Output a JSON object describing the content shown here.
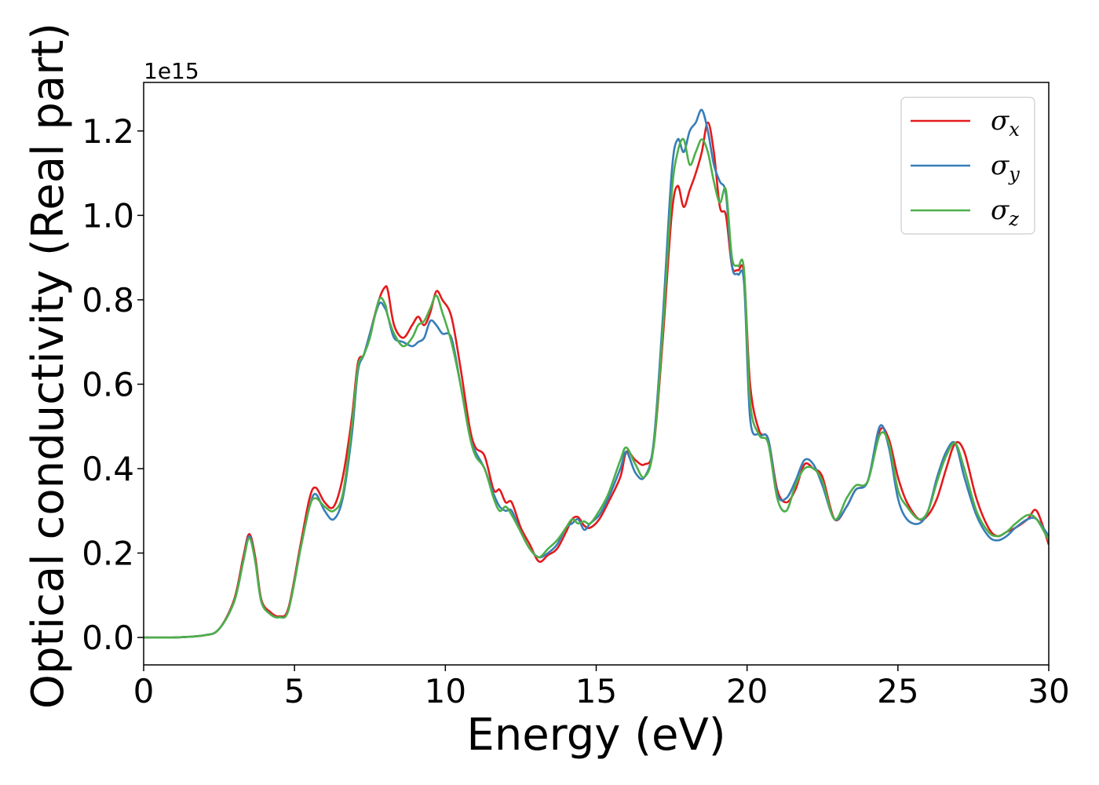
{
  "chart_data": {
    "type": "line",
    "title": "",
    "xlabel": "Energy (eV)",
    "ylabel": "Optical conductivity (Real part)",
    "y_offset_label": "1e15",
    "xlim": [
      0,
      30
    ],
    "ylim": [
      -0.065,
      1.315
    ],
    "xticks": [
      0,
      5,
      10,
      15,
      20,
      25,
      30
    ],
    "xtick_labels": [
      "0",
      "5",
      "10",
      "15",
      "20",
      "25",
      "30"
    ],
    "yticks": [
      0.0,
      0.2,
      0.4,
      0.6,
      0.8,
      1.0,
      1.2
    ],
    "ytick_labels": [
      "0.0",
      "0.2",
      "0.4",
      "0.6",
      "0.8",
      "1.0",
      "1.2"
    ],
    "grid": false,
    "legend": {
      "placement": "top-right"
    },
    "series": [
      {
        "name": "σx",
        "name_main": "σ",
        "name_sub": "x",
        "color": "#e41a1c",
        "x": [
          0,
          1,
          2,
          2.5,
          3.0,
          3.3,
          3.5,
          3.7,
          3.9,
          4.2,
          4.5,
          4.8,
          5.2,
          5.5,
          5.7,
          6.0,
          6.3,
          6.6,
          6.9,
          7.1,
          7.3,
          7.5,
          7.8,
          8.0,
          8.1,
          8.3,
          8.6,
          8.9,
          9.1,
          9.3,
          9.5,
          9.7,
          9.9,
          10.2,
          10.5,
          10.8,
          11.0,
          11.3,
          11.6,
          11.8,
          12.0,
          12.2,
          12.5,
          12.8,
          13.1,
          13.4,
          13.7,
          14.0,
          14.2,
          14.4,
          14.6,
          14.8,
          15.1,
          15.4,
          15.8,
          16.0,
          16.3,
          16.6,
          16.9,
          17.2,
          17.5,
          17.7,
          17.9,
          18.1,
          18.3,
          18.5,
          18.7,
          18.9,
          19.1,
          19.3,
          19.5,
          19.7,
          19.9,
          20.1,
          20.4,
          20.7,
          21.0,
          21.3,
          21.6,
          21.9,
          22.2,
          22.5,
          22.9,
          23.3,
          23.6,
          24.0,
          24.4,
          24.7,
          25.0,
          25.3,
          25.7,
          26.0,
          26.3,
          26.6,
          26.9,
          27.2,
          27.6,
          28.0,
          28.3,
          28.6,
          28.9,
          29.3,
          29.6,
          30.0
        ],
        "y": [
          0.0,
          0.0,
          0.005,
          0.02,
          0.09,
          0.19,
          0.245,
          0.19,
          0.09,
          0.06,
          0.05,
          0.07,
          0.22,
          0.33,
          0.355,
          0.32,
          0.31,
          0.38,
          0.52,
          0.65,
          0.67,
          0.72,
          0.8,
          0.83,
          0.82,
          0.74,
          0.71,
          0.74,
          0.76,
          0.74,
          0.77,
          0.82,
          0.8,
          0.76,
          0.64,
          0.5,
          0.45,
          0.43,
          0.35,
          0.35,
          0.32,
          0.32,
          0.26,
          0.22,
          0.18,
          0.195,
          0.21,
          0.25,
          0.28,
          0.285,
          0.265,
          0.26,
          0.28,
          0.32,
          0.38,
          0.44,
          0.42,
          0.41,
          0.45,
          0.7,
          1.0,
          1.07,
          1.02,
          1.06,
          1.1,
          1.15,
          1.22,
          1.15,
          1.02,
          1.0,
          0.88,
          0.87,
          0.86,
          0.6,
          0.49,
          0.47,
          0.35,
          0.32,
          0.35,
          0.41,
          0.4,
          0.38,
          0.28,
          0.31,
          0.35,
          0.37,
          0.49,
          0.47,
          0.38,
          0.32,
          0.28,
          0.29,
          0.33,
          0.4,
          0.46,
          0.44,
          0.33,
          0.26,
          0.24,
          0.25,
          0.26,
          0.28,
          0.3,
          0.22
        ]
      },
      {
        "name": "σy",
        "name_main": "σ",
        "name_sub": "y",
        "color": "#377eb8",
        "x": [
          0,
          1,
          2,
          2.5,
          3.0,
          3.3,
          3.5,
          3.7,
          3.9,
          4.2,
          4.5,
          4.8,
          5.2,
          5.5,
          5.7,
          6.0,
          6.3,
          6.6,
          6.9,
          7.1,
          7.3,
          7.5,
          7.8,
          8.0,
          8.1,
          8.3,
          8.6,
          8.9,
          9.1,
          9.3,
          9.5,
          9.7,
          9.9,
          10.2,
          10.5,
          10.8,
          11.0,
          11.3,
          11.6,
          11.8,
          12.0,
          12.2,
          12.5,
          12.8,
          13.1,
          13.4,
          13.7,
          14.0,
          14.2,
          14.4,
          14.6,
          14.8,
          15.1,
          15.4,
          15.8,
          16.0,
          16.3,
          16.6,
          16.9,
          17.2,
          17.5,
          17.7,
          17.9,
          18.1,
          18.3,
          18.5,
          18.7,
          18.9,
          19.1,
          19.3,
          19.5,
          19.7,
          19.9,
          20.1,
          20.4,
          20.7,
          21.0,
          21.3,
          21.6,
          21.9,
          22.2,
          22.5,
          22.9,
          23.3,
          23.6,
          24.0,
          24.4,
          24.7,
          25.0,
          25.3,
          25.7,
          26.0,
          26.3,
          26.6,
          26.9,
          27.2,
          27.6,
          28.0,
          28.3,
          28.6,
          28.9,
          29.3,
          29.6,
          30.0
        ],
        "y": [
          0.0,
          0.0,
          0.005,
          0.02,
          0.085,
          0.18,
          0.24,
          0.18,
          0.085,
          0.055,
          0.048,
          0.065,
          0.21,
          0.31,
          0.34,
          0.3,
          0.28,
          0.33,
          0.48,
          0.63,
          0.67,
          0.72,
          0.79,
          0.78,
          0.76,
          0.71,
          0.7,
          0.69,
          0.7,
          0.71,
          0.75,
          0.74,
          0.72,
          0.71,
          0.6,
          0.48,
          0.44,
          0.4,
          0.34,
          0.31,
          0.3,
          0.3,
          0.25,
          0.21,
          0.19,
          0.2,
          0.22,
          0.26,
          0.27,
          0.28,
          0.255,
          0.27,
          0.29,
          0.33,
          0.4,
          0.44,
          0.39,
          0.38,
          0.46,
          0.75,
          1.1,
          1.18,
          1.15,
          1.2,
          1.22,
          1.25,
          1.2,
          1.12,
          1.08,
          1.05,
          0.88,
          0.86,
          0.84,
          0.52,
          0.48,
          0.47,
          0.34,
          0.33,
          0.37,
          0.42,
          0.41,
          0.36,
          0.28,
          0.31,
          0.35,
          0.37,
          0.5,
          0.45,
          0.33,
          0.28,
          0.27,
          0.3,
          0.38,
          0.44,
          0.46,
          0.38,
          0.29,
          0.24,
          0.23,
          0.24,
          0.26,
          0.28,
          0.28,
          0.24
        ]
      },
      {
        "name": "σz",
        "name_main": "σ",
        "name_sub": "z",
        "color": "#4daf4a",
        "x": [
          0,
          1,
          2,
          2.5,
          3.0,
          3.3,
          3.5,
          3.7,
          3.9,
          4.2,
          4.5,
          4.8,
          5.2,
          5.5,
          5.7,
          6.0,
          6.3,
          6.6,
          6.9,
          7.1,
          7.3,
          7.5,
          7.8,
          8.0,
          8.1,
          8.3,
          8.6,
          8.9,
          9.1,
          9.3,
          9.5,
          9.7,
          9.9,
          10.2,
          10.5,
          10.8,
          11.0,
          11.3,
          11.6,
          11.8,
          12.0,
          12.2,
          12.5,
          12.8,
          13.1,
          13.4,
          13.7,
          14.0,
          14.2,
          14.4,
          14.6,
          14.8,
          15.1,
          15.4,
          15.8,
          16.0,
          16.3,
          16.6,
          16.9,
          17.2,
          17.5,
          17.7,
          17.9,
          18.1,
          18.3,
          18.5,
          18.7,
          18.9,
          19.1,
          19.3,
          19.5,
          19.7,
          19.9,
          20.1,
          20.4,
          20.7,
          21.0,
          21.3,
          21.6,
          21.9,
          22.2,
          22.5,
          22.9,
          23.3,
          23.6,
          24.0,
          24.4,
          24.7,
          25.0,
          25.3,
          25.7,
          26.0,
          26.3,
          26.6,
          26.9,
          27.2,
          27.6,
          28.0,
          28.3,
          28.6,
          28.9,
          29.3,
          29.6,
          30.0
        ],
        "y": [
          0.0,
          0.0,
          0.005,
          0.02,
          0.085,
          0.18,
          0.235,
          0.18,
          0.085,
          0.055,
          0.048,
          0.065,
          0.21,
          0.31,
          0.33,
          0.31,
          0.3,
          0.34,
          0.5,
          0.64,
          0.67,
          0.71,
          0.8,
          0.79,
          0.76,
          0.72,
          0.69,
          0.71,
          0.74,
          0.75,
          0.78,
          0.81,
          0.77,
          0.7,
          0.6,
          0.48,
          0.43,
          0.4,
          0.33,
          0.3,
          0.31,
          0.29,
          0.25,
          0.21,
          0.19,
          0.21,
          0.23,
          0.26,
          0.28,
          0.27,
          0.275,
          0.27,
          0.3,
          0.34,
          0.42,
          0.45,
          0.41,
          0.38,
          0.45,
          0.72,
          1.05,
          1.15,
          1.18,
          1.12,
          1.15,
          1.18,
          1.15,
          1.08,
          1.03,
          1.06,
          0.9,
          0.88,
          0.87,
          0.56,
          0.48,
          0.46,
          0.33,
          0.3,
          0.36,
          0.4,
          0.4,
          0.37,
          0.28,
          0.33,
          0.36,
          0.37,
          0.48,
          0.46,
          0.35,
          0.31,
          0.28,
          0.3,
          0.37,
          0.43,
          0.46,
          0.4,
          0.3,
          0.25,
          0.24,
          0.25,
          0.27,
          0.29,
          0.28,
          0.23
        ]
      }
    ]
  }
}
